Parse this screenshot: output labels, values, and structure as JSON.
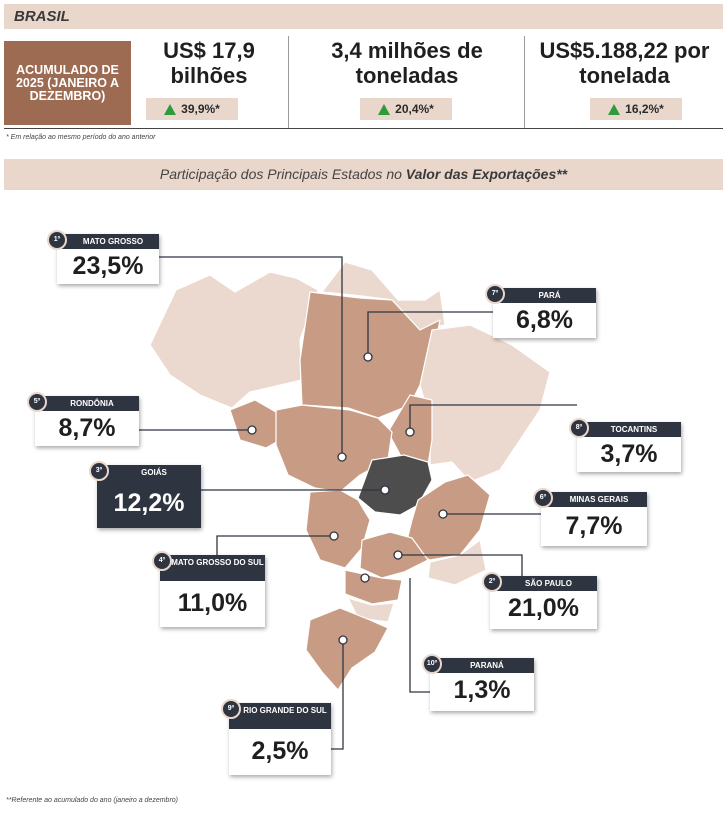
{
  "header": {
    "title": "BRASIL"
  },
  "accumulated": {
    "label": "ACUMULADO DE 2025 (JANEIRO A DEZEMBRO)"
  },
  "metrics": [
    {
      "value": "US$ 17,9 bilhões",
      "change": "39,9%*"
    },
    {
      "value": "3,4 milhões de toneladas",
      "change": "20,4%*"
    },
    {
      "value": "US$5.188,22 por tonelada",
      "change": "16,2%*"
    }
  ],
  "note_period": "* Em relação ao mesmo período do ano anterior",
  "subtitle": {
    "prefix": "Participação dos Principais Estados no ",
    "bold": "Valor das Exportações**"
  },
  "colors": {
    "accent": "#9d6a52",
    "light": "#ead7cc",
    "dark_card": "#2f3540",
    "up_arrow": "#2e9b3a",
    "goias": "#4d4d4d"
  },
  "states": [
    {
      "rank": "1º",
      "name": "MATO GROSSO",
      "value": "23,5%"
    },
    {
      "rank": "7º",
      "name": "PARÁ",
      "value": "6,8%"
    },
    {
      "rank": "5º",
      "name": "RONDÔNIA",
      "value": "8,7%"
    },
    {
      "rank": "8º",
      "name": "TOCANTINS",
      "value": "3,7%"
    },
    {
      "rank": "3º",
      "name": "GOIÁS",
      "value": "12,2%"
    },
    {
      "rank": "6º",
      "name": "MINAS GERAIS",
      "value": "7,7%"
    },
    {
      "rank": "4º",
      "name": "MATO GROSSO DO SUL",
      "value": "11,0%"
    },
    {
      "rank": "2º",
      "name": "SÃO PAULO",
      "value": "21,0%"
    },
    {
      "rank": "10º",
      "name": "PARANÁ",
      "value": "1,3%"
    },
    {
      "rank": "9º",
      "name": "RIO GRANDE DO SUL",
      "value": "2,5%"
    }
  ],
  "note_reference": "**Referente ao acumulado do ano (janeiro a dezembro)"
}
